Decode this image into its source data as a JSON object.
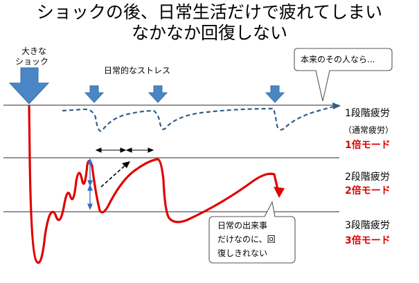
{
  "title": {
    "line1": "ショックの後、日常生活だけで疲れてしまい",
    "line2": "なかなか回復しない"
  },
  "labels": {
    "big_shock_1": "大きな",
    "big_shock_2": "ショック",
    "daily_stress": "日常的なストレス"
  },
  "callouts": {
    "normal": "本来のその人なら...",
    "daily_1": "日常の出来事",
    "daily_2": "だけなのに、回",
    "daily_3": "復しきれない"
  },
  "levels": [
    {
      "name": "1段階疲労",
      "sub": "（通常疲労）",
      "mode": "1倍モード"
    },
    {
      "name": "2段階疲労",
      "mode": "2倍モード"
    },
    {
      "name": "3段階疲労",
      "mode": "3倍モード"
    }
  ],
  "colors": {
    "red_curve": "#e00000",
    "blue_dashed": "#2e5f8a",
    "arrow_blue": "#4a86c5",
    "line_gray": "#555555"
  }
}
